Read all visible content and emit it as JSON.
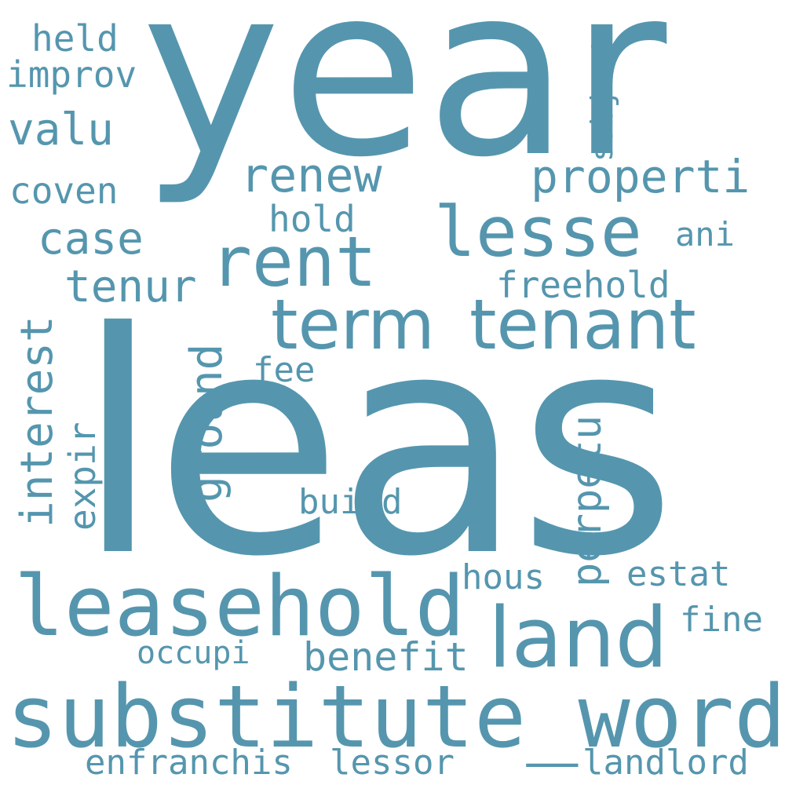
{
  "cloud": {
    "colors": {
      "background": "#ffffff",
      "word": "#5596ae"
    },
    "words": {
      "leas": "leas",
      "year": "year",
      "substitute_word": "substitute_word",
      "leasehold": "leasehold",
      "land": "land",
      "term": "term",
      "tenant": "tenant",
      "rent": "rent",
      "lesse": "lesse",
      "properti": "properti",
      "renew": "renew",
      "case": "case",
      "tenur": "tenur",
      "valu": "valu",
      "coven": "coven",
      "held": "held",
      "improv": "improv",
      "hold": "hold",
      "ani": "ani",
      "freehold": "freehold",
      "fee": "fee",
      "build": "build",
      "hous": "hous",
      "estat": "estat",
      "fine": "fine",
      "benefit": "benefit",
      "occupi": "occupi",
      "enfranchis": "enfranchis",
      "lessor": "lessor",
      "landlord": "landlord",
      "interest": "interest",
      "expir": "expir",
      "ground": "ground",
      "perpetu": "perpetu",
      "subject": "subject"
    }
  }
}
